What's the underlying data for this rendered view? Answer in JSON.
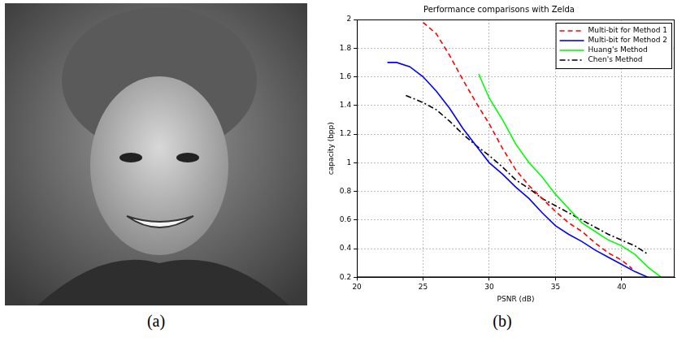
{
  "panel_labels": [
    "(a)",
    "(b)"
  ],
  "chart_data": {
    "type": "line",
    "title": "Performance comparisons with Zelda",
    "x_label": "PSNR (dB)",
    "y_label": "capacity (bpp)",
    "xlim": [
      20,
      44
    ],
    "xticks": [
      20,
      25,
      30,
      35,
      40
    ],
    "ylim": [
      0.2,
      2
    ],
    "yticks": [
      0.2,
      0.4,
      0.6,
      0.8,
      1,
      1.2,
      1.4,
      1.6,
      1.8,
      2
    ],
    "grid": true,
    "legend": "upper right",
    "series": [
      {
        "name": "Multi-bit for Method 1",
        "color": "#ff0000",
        "line_style": "dashed",
        "x": [
          25,
          26,
          27,
          28,
          29,
          30,
          31,
          32,
          33,
          34,
          35,
          36,
          37,
          38,
          39,
          40,
          40.8
        ],
        "values": [
          1.98,
          1.9,
          1.75,
          1.58,
          1.42,
          1.27,
          1.1,
          0.95,
          0.84,
          0.75,
          0.66,
          0.58,
          0.52,
          0.44,
          0.37,
          0.32,
          0.26
        ]
      },
      {
        "name": "Multi-bit for Method 2",
        "color": "#0000ff",
        "line_style": "solid",
        "x": [
          22.3,
          23,
          24,
          25,
          26,
          27,
          28,
          29,
          30,
          31,
          32,
          33,
          34,
          35,
          36,
          37,
          38,
          39,
          40,
          41,
          42
        ],
        "values": [
          1.7,
          1.7,
          1.67,
          1.6,
          1.5,
          1.38,
          1.24,
          1.12,
          1.0,
          0.92,
          0.83,
          0.75,
          0.65,
          0.56,
          0.5,
          0.45,
          0.39,
          0.34,
          0.29,
          0.24,
          0.2
        ]
      },
      {
        "name": "Huang's Method",
        "color": "#00ff00",
        "line_style": "solid",
        "x": [
          29.2,
          30,
          31,
          32,
          33,
          34,
          35,
          36,
          37,
          38,
          39,
          40,
          41,
          42,
          43
        ],
        "values": [
          1.62,
          1.45,
          1.3,
          1.13,
          1.0,
          0.9,
          0.78,
          0.68,
          0.58,
          0.52,
          0.46,
          0.42,
          0.36,
          0.27,
          0.2
        ]
      },
      {
        "name": "Chen's Method",
        "color": "#000000",
        "line_style": "dashdot",
        "x": [
          23.7,
          25,
          26,
          27,
          28,
          29,
          30,
          31,
          32,
          33,
          34,
          35,
          36,
          37,
          38,
          39,
          40,
          41,
          42
        ],
        "values": [
          1.47,
          1.42,
          1.37,
          1.29,
          1.2,
          1.12,
          1.05,
          0.97,
          0.88,
          0.82,
          0.75,
          0.7,
          0.65,
          0.6,
          0.55,
          0.5,
          0.46,
          0.42,
          0.36
        ]
      }
    ]
  }
}
